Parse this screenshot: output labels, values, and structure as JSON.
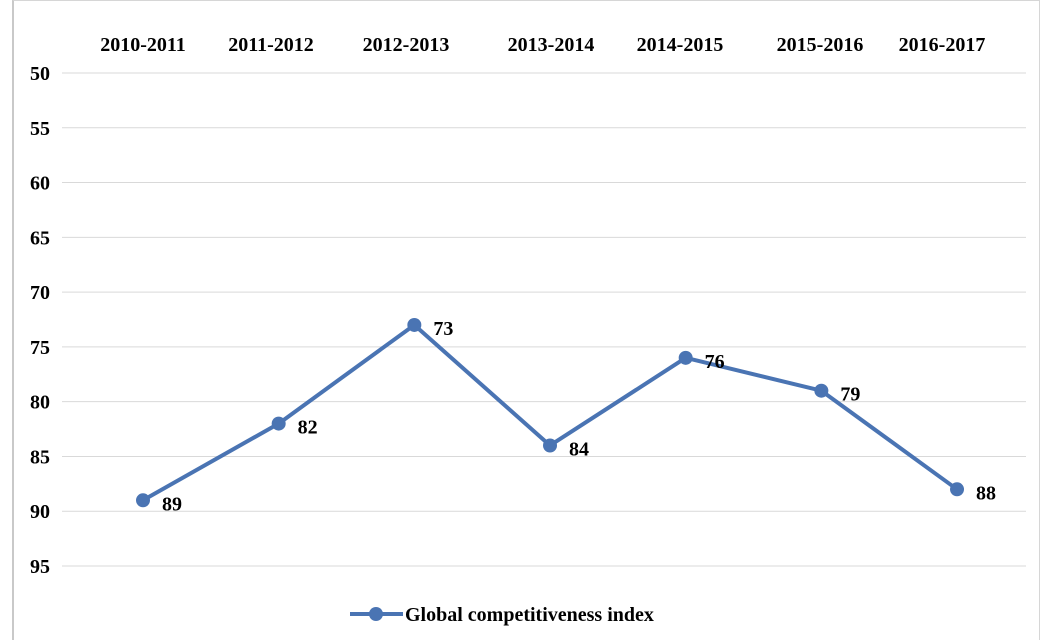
{
  "chart_data": {
    "type": "line",
    "categories": [
      "2010-2011",
      "2011-2012",
      "2012-2013",
      "2013-2014",
      "2014-2015",
      "2015-2016",
      "2016-2017"
    ],
    "series": [
      {
        "name": "Global competitiveness index",
        "values": [
          89,
          82,
          73,
          84,
          76,
          79,
          88
        ],
        "color": "#4a74b3"
      }
    ],
    "y_ticks": [
      "50",
      "55",
      "60",
      "65",
      "70",
      "75",
      "80",
      "85",
      "90",
      "95"
    ],
    "ylim": [
      50,
      95
    ],
    "y_axis_reversed": true,
    "category_axis_position": "top",
    "grid": true,
    "data_labels": true,
    "legend_position": "bottom"
  }
}
